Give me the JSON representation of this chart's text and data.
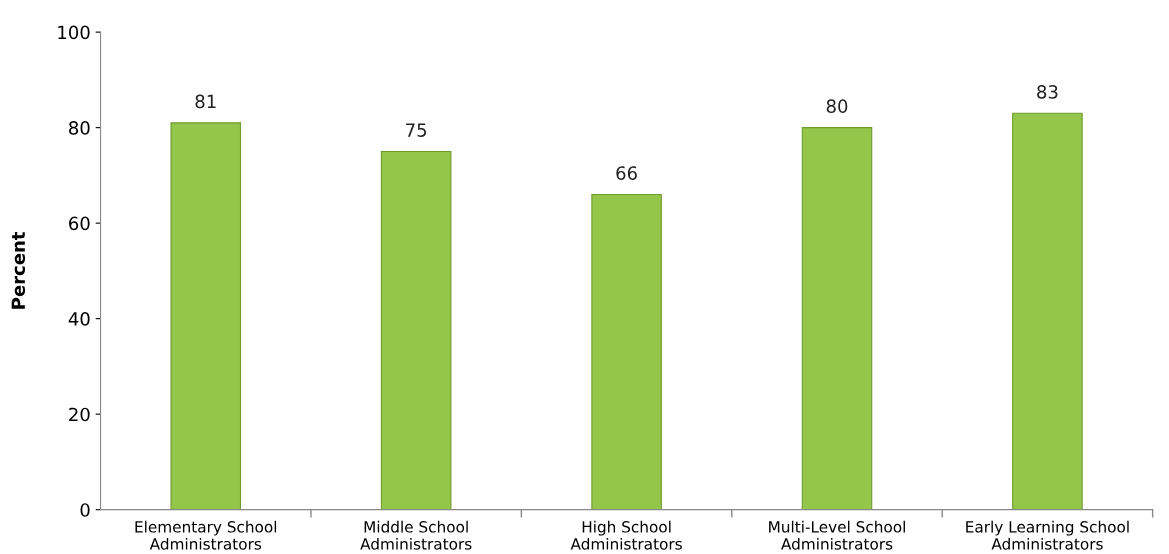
{
  "chart_data": {
    "type": "bar",
    "ylabel": "Percent",
    "categories": [
      "Elementary School\nAdministrators",
      "Middle School\nAdministrators",
      "High School\nAdministrators",
      "Multi-Level School\nAdministrators",
      "Early Learning School\nAdministrators"
    ],
    "values": [
      81,
      75,
      66,
      80,
      83
    ],
    "color": "#94c64a",
    "ylim": [
      0,
      100
    ],
    "yticks": [
      0,
      20,
      40,
      60,
      80,
      100
    ],
    "grid": false,
    "data_labels": true
  }
}
